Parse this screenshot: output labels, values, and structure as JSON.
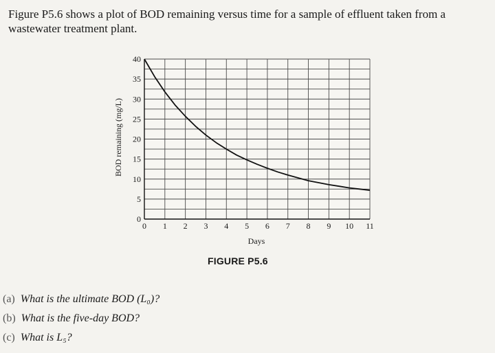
{
  "intro": "Figure P5.6 shows a plot of BOD remaining versus time for a sample of effluent taken from a wastewater treatment plant.",
  "figure_caption": "FIGURE P5.6",
  "questions": [
    {
      "marker": "(a)",
      "text": "What is the ultimate BOD (L₀)?"
    },
    {
      "marker": "(b)",
      "text": "What is the five-day BOD?"
    },
    {
      "marker": "(c)",
      "text": "What is L₅?"
    }
  ],
  "chart_data": {
    "type": "line",
    "xlabel": "Days",
    "ylabel": "BOD remaining (mg/L)",
    "xlim": [
      0,
      11
    ],
    "ylim": [
      0,
      40
    ],
    "x_ticks": [
      "0",
      "1",
      "2",
      "3",
      "4",
      "5",
      "6",
      "7",
      "8",
      "9",
      "10",
      "11"
    ],
    "y_ticks": [
      "0",
      "5",
      "10",
      "15",
      "20",
      "25",
      "30",
      "35",
      "40"
    ],
    "grid": true,
    "series": [
      {
        "x": [
          0,
          0.5,
          1,
          1.5,
          2,
          2.5,
          3,
          3.5,
          4,
          4.5,
          5,
          5.5,
          6,
          6.5,
          7,
          7.5,
          8,
          8.5,
          9,
          9.5,
          10,
          10.5,
          11
        ],
        "y": [
          40,
          35.6,
          31.8,
          28.5,
          25.7,
          23.2,
          21.0,
          19.1,
          17.5,
          16.0,
          14.8,
          13.7,
          12.7,
          11.8,
          11.0,
          10.3,
          9.6,
          9.1,
          8.6,
          8.2,
          7.8,
          7.5,
          7.2
        ]
      }
    ]
  }
}
